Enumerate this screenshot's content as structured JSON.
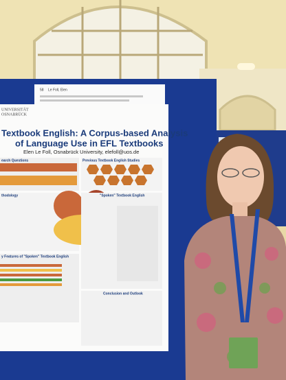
{
  "label_card": {
    "number": "58",
    "name": "Le Foll, Elen"
  },
  "poster": {
    "logo": [
      "UNIVERSITÄT",
      "OSNABRÜCK"
    ],
    "title": [
      "Textbook English: A Corpus-based Analysis",
      "of Language Use in EFL Textbooks"
    ],
    "author": "Elen Le Foll, Osnabrück University, elefoll@uos.de",
    "sections": [
      "earch Questions",
      "Previous Textbook English Studies",
      "thodology",
      "\"Spoken\" Textbook English",
      "y Features of \"Spoken\" Textbook English",
      "Conclusion and Outlook"
    ]
  }
}
